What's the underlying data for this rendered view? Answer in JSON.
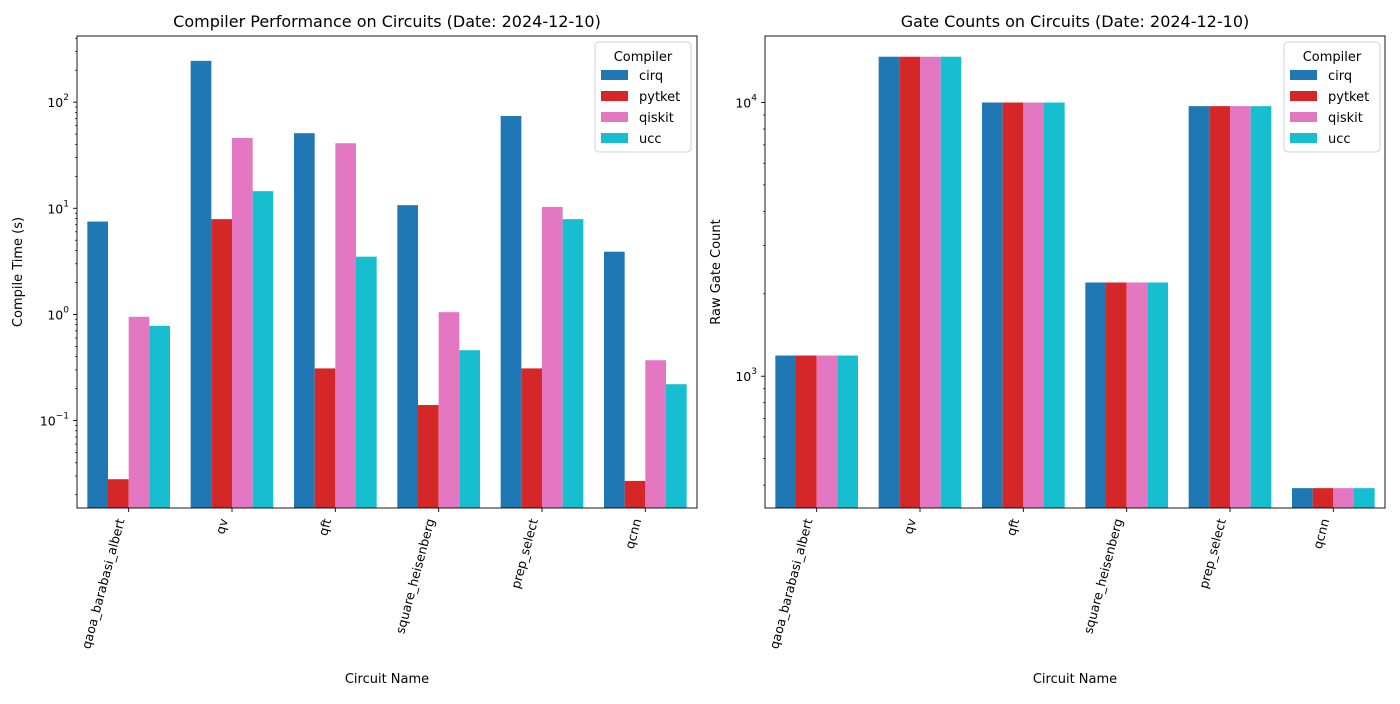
{
  "chart_data": [
    {
      "type": "bar",
      "title": "Compiler Performance on Circuits (Date: 2024-12-10)",
      "xlabel": "Circuit Name",
      "ylabel": "Compile Time (s)",
      "yscale": "log",
      "ylim": [
        0.015,
        420
      ],
      "yticks": [
        {
          "value": 0.1,
          "label": "10",
          "exp": "−1"
        },
        {
          "value": 1,
          "label": "10",
          "exp": "0"
        },
        {
          "value": 10,
          "label": "10",
          "exp": "1"
        },
        {
          "value": 100,
          "label": "10",
          "exp": "2"
        }
      ],
      "categories": [
        "qaoa_barabasi_albert",
        "qv",
        "qft",
        "square_heisenberg",
        "prep_select",
        "qcnn"
      ],
      "legend": {
        "title": "Compiler",
        "position": "top-right"
      },
      "series": [
        {
          "name": "cirq",
          "color": "#1f77b4",
          "values": [
            7.5,
            245,
            51,
            10.7,
            74,
            3.9
          ]
        },
        {
          "name": "pytket",
          "color": "#d62728",
          "values": [
            0.028,
            7.9,
            0.31,
            0.14,
            0.31,
            0.027
          ]
        },
        {
          "name": "qiskit",
          "color": "#e377c2",
          "values": [
            0.95,
            46,
            41,
            1.05,
            10.3,
            0.37
          ]
        },
        {
          "name": "ucc",
          "color": "#17becf",
          "values": [
            0.78,
            14.5,
            3.5,
            0.46,
            7.9,
            0.22
          ]
        }
      ],
      "grid": false
    },
    {
      "type": "bar",
      "title": "Gate Counts on Circuits (Date: 2024-12-10)",
      "xlabel": "Circuit Name",
      "ylabel": "Raw Gate Count",
      "yscale": "log",
      "ylim": [
        330,
        17500
      ],
      "yticks": [
        {
          "value": 1000,
          "label": "10",
          "exp": "3"
        },
        {
          "value": 10000,
          "label": "10",
          "exp": "4"
        }
      ],
      "categories": [
        "qaoa_barabasi_albert",
        "qv",
        "qft",
        "square_heisenberg",
        "prep_select",
        "qcnn"
      ],
      "legend": {
        "title": "Compiler",
        "position": "top-right"
      },
      "series": [
        {
          "name": "cirq",
          "color": "#1f77b4",
          "values": [
            1190,
            14700,
            10000,
            2200,
            9700,
            390
          ]
        },
        {
          "name": "pytket",
          "color": "#d62728",
          "values": [
            1190,
            14700,
            10000,
            2200,
            9700,
            390
          ]
        },
        {
          "name": "qiskit",
          "color": "#e377c2",
          "values": [
            1190,
            14700,
            10000,
            2200,
            9700,
            390
          ]
        },
        {
          "name": "ucc",
          "color": "#17becf",
          "values": [
            1190,
            14700,
            10000,
            2200,
            9700,
            390
          ]
        }
      ],
      "grid": false
    }
  ]
}
